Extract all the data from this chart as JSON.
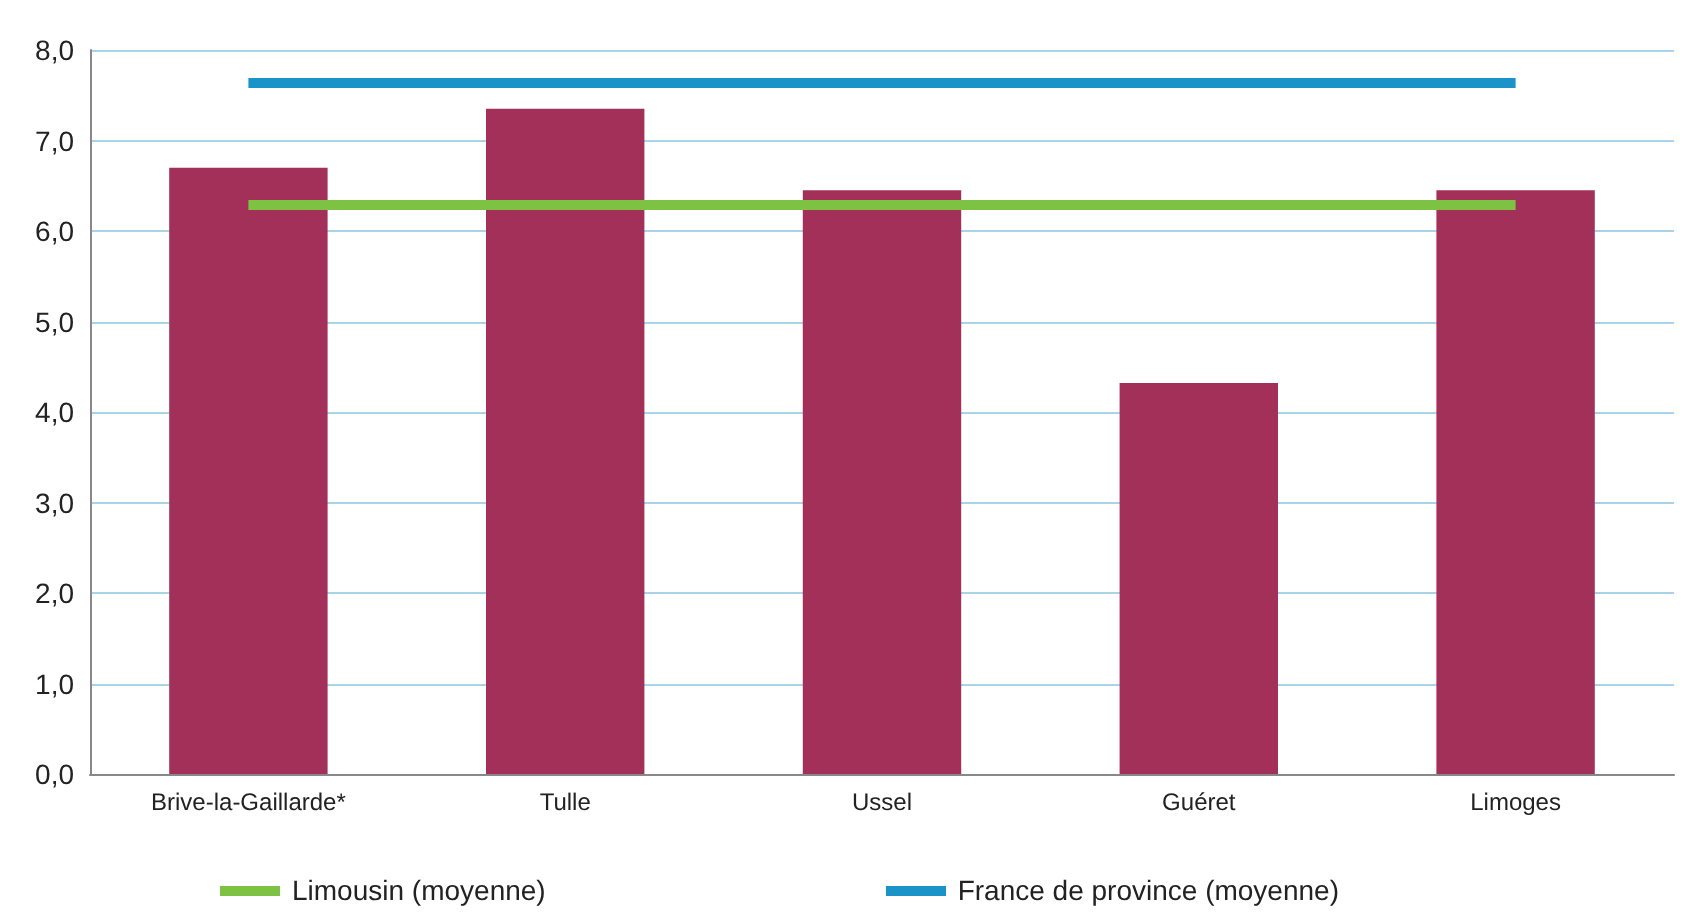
{
  "chart_data": {
    "type": "bar",
    "categories": [
      "Brive-la-Gaillarde*",
      "Tulle",
      "Ussel",
      "Guéret",
      "Limoges"
    ],
    "values": [
      6.7,
      7.35,
      6.45,
      4.32,
      6.45
    ],
    "color": "#a33059",
    "ref_lines": [
      {
        "axis": "y",
        "value": 6.3,
        "label": "Limousin (moyenne)",
        "color": "#7dc243",
        "line_style": "solid"
      },
      {
        "axis": "y",
        "value": 7.63,
        "label": "France de province (moyenne)",
        "color": "#1a93c8",
        "line_style": "solid"
      }
    ],
    "ylim": [
      0,
      8
    ],
    "yticks": [
      {
        "value": 0,
        "label": "0,0"
      },
      {
        "value": 1,
        "label": "1,0"
      },
      {
        "value": 2,
        "label": "2,0"
      },
      {
        "value": 3,
        "label": "3,0"
      },
      {
        "value": 4,
        "label": "4,0"
      },
      {
        "value": 5,
        "label": "5,0"
      },
      {
        "value": 6,
        "label": "6,0"
      },
      {
        "value": 7,
        "label": "7,0"
      },
      {
        "value": 8,
        "label": "8,0"
      }
    ],
    "grid": "y",
    "legend": "bottom left"
  }
}
